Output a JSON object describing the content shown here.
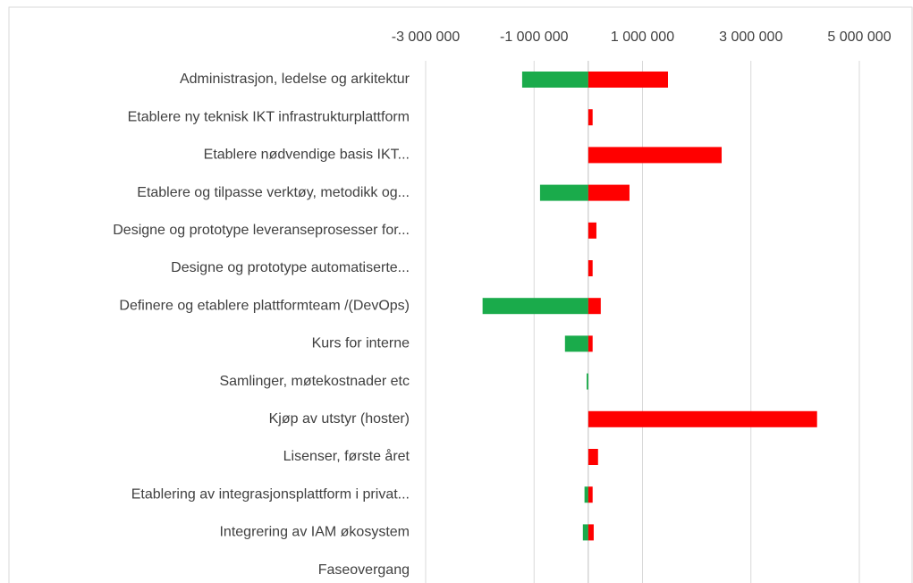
{
  "chart_data": {
    "type": "bar",
    "orientation": "horizontal",
    "categories": [
      "Administrasjon, ledelse og arkitektur",
      "Etablere ny teknisk IKT infrastrukturplattform",
      "Etablere nødvendige basis IKT...",
      "Etablere og tilpasse verktøy, metodikk og...",
      "Designe og prototype leveranseprosesser for...",
      "Designe og prototype automatiserte...",
      "Definere og etablere plattformteam /(DevOps)",
      "Kurs for interne",
      "Samlinger, møtekostnader etc",
      "Kjøp av utstyr (hoster)",
      "Lisenser, første året",
      "Etablering av integrasjonsplattform i privat...",
      "Integrering av IAM økosystem",
      "Faseovergang"
    ],
    "series": [
      {
        "color": "#1aab4b",
        "values": [
          -1220000,
          0,
          0,
          -890000,
          0,
          0,
          -1950000,
          -430000,
          -30000,
          0,
          0,
          -70000,
          -100000,
          0
        ]
      },
      {
        "color": "#ff0000",
        "values": [
          1470000,
          80000,
          2460000,
          760000,
          150000,
          80000,
          230000,
          80000,
          0,
          4220000,
          180000,
          80000,
          100000,
          0
        ]
      }
    ],
    "xlim": [
      -3000000,
      5000000
    ],
    "xticks": [
      {
        "value": -3000000,
        "label": "-3 000 000"
      },
      {
        "value": -1000000,
        "label": "-1 000 000"
      },
      {
        "value": 1000000,
        "label": "1 000 000"
      },
      {
        "value": 3000000,
        "label": "3 000 000"
      },
      {
        "value": 5000000,
        "label": "5 000 000"
      }
    ],
    "grid": true
  }
}
